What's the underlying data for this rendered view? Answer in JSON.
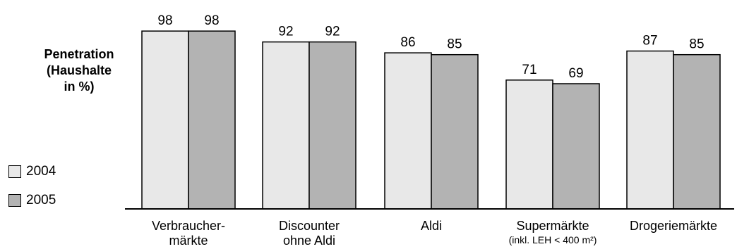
{
  "chart_data": {
    "type": "bar",
    "ylabel": [
      "Penetration",
      "(Haushalte",
      "in %)"
    ],
    "categories": [
      {
        "label": [
          "Verbraucher-",
          "märkte"
        ],
        "sub": ""
      },
      {
        "label": [
          "Discounter",
          "ohne Aldi"
        ],
        "sub": ""
      },
      {
        "label": [
          "Aldi"
        ],
        "sub": ""
      },
      {
        "label": [
          "Supermärkte"
        ],
        "sub": "(inkl. LEH < 400 m²)"
      },
      {
        "label": [
          "Drogeriemärkte"
        ],
        "sub": ""
      }
    ],
    "series": [
      {
        "name": "2004",
        "color": "#e8e8e8",
        "values": [
          98,
          92,
          86,
          71,
          87
        ]
      },
      {
        "name": "2005",
        "color": "#b3b3b3",
        "values": [
          98,
          92,
          85,
          69,
          85
        ]
      }
    ],
    "ylim": [
      0,
      100
    ],
    "grid": false,
    "legend_position": "left-bottom"
  }
}
